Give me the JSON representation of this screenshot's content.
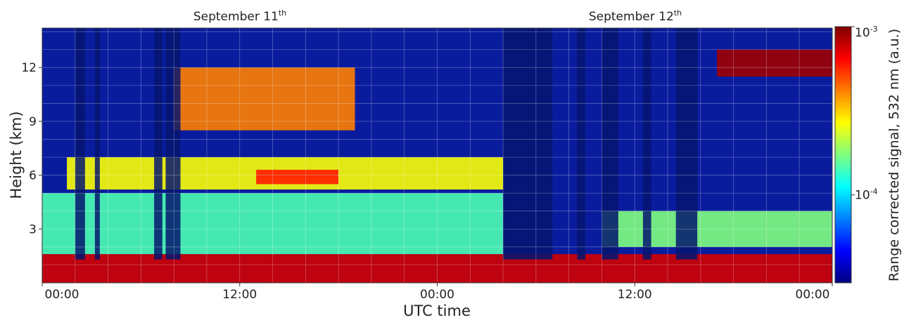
{
  "chart_data": {
    "type": "heatmap",
    "title": "",
    "panel_titles": [
      {
        "text": "September 11",
        "sup": "th",
        "x_center_h": 12
      },
      {
        "text": "September 12",
        "sup": "th",
        "x_center_h": 36
      }
    ],
    "xlabel": "UTC time",
    "ylabel": "Height (km)",
    "xlim_hours": [
      0,
      48
    ],
    "ylim_km": [
      0,
      14.2
    ],
    "x_ticks": [
      {
        "value": 0,
        "label": "00:00"
      },
      {
        "value": 12,
        "label": "12:00"
      },
      {
        "value": 24,
        "label": "00:00"
      },
      {
        "value": 36,
        "label": "12:00"
      },
      {
        "value": 48,
        "label": "00:00"
      }
    ],
    "y_ticks": [
      {
        "value": 3,
        "label": "3"
      },
      {
        "value": 6,
        "label": "6"
      },
      {
        "value": 9,
        "label": "9"
      },
      {
        "value": 12,
        "label": "12"
      }
    ],
    "grid": true,
    "colorbar": {
      "label": "Range corrected signal, 532 nm (a.u.)",
      "scale": "log",
      "ticks": [
        {
          "base": "10",
          "exp": "-3",
          "value": 0.001
        },
        {
          "base": "10",
          "exp": "-4",
          "value": 0.0001
        }
      ],
      "colormap": "jet",
      "range": [
        3e-05,
        0.001
      ]
    },
    "features": [
      {
        "name": "boundary-layer",
        "t": [
          0,
          48
        ],
        "h": [
          0,
          1.6
        ],
        "level": 0.92
      },
      {
        "name": "residual-layer",
        "t": [
          0,
          28
        ],
        "h": [
          1.6,
          5.0
        ],
        "level": 0.45
      },
      {
        "name": "mid-cloud-layer",
        "t": [
          1.5,
          28
        ],
        "h": [
          5.2,
          7.0
        ],
        "level": 0.62
      },
      {
        "name": "mid-cloud-peak",
        "t": [
          13,
          18
        ],
        "h": [
          5.5,
          6.3
        ],
        "level": 0.85
      },
      {
        "name": "cirrus-day1",
        "t": [
          8,
          19
        ],
        "h": [
          8.5,
          12
        ],
        "level": 0.75
      },
      {
        "name": "cirrus-day2",
        "t": [
          41,
          48
        ],
        "h": [
          11.5,
          13.0
        ],
        "level": 0.97
      },
      {
        "name": "aerosol-day2",
        "t": [
          34,
          48
        ],
        "h": [
          2.0,
          4.0
        ],
        "level": 0.5
      }
    ],
    "data_gaps": [
      {
        "t": [
          2.0,
          2.6
        ]
      },
      {
        "t": [
          3.2,
          3.5
        ]
      },
      {
        "t": [
          6.8,
          7.3
        ]
      },
      {
        "t": [
          7.5,
          8.4
        ]
      },
      {
        "t": [
          28.0,
          31.0
        ]
      },
      {
        "t": [
          32.5,
          33.0
        ]
      },
      {
        "t": [
          34.0,
          35.0
        ]
      },
      {
        "t": [
          36.5,
          37.0
        ]
      },
      {
        "t": [
          38.5,
          39.8
        ]
      }
    ]
  }
}
